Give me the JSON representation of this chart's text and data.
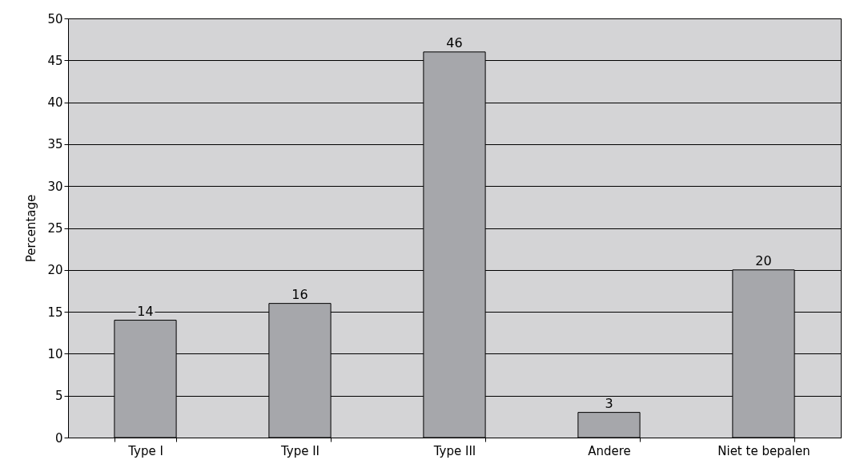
{
  "chart_data": {
    "type": "bar",
    "ylabel": "Percentage",
    "categories": [
      "Type I",
      "Type II",
      "Type III",
      "Andere",
      "Niet te bepalen"
    ],
    "values": [
      14,
      16,
      46,
      3,
      20
    ],
    "color": "#a6a7ab",
    "ylim": [
      0,
      50
    ],
    "yticks": [
      0,
      5,
      10,
      15,
      20,
      25,
      30,
      35,
      40,
      45,
      50
    ],
    "grid": "y",
    "data_labels": true
  }
}
